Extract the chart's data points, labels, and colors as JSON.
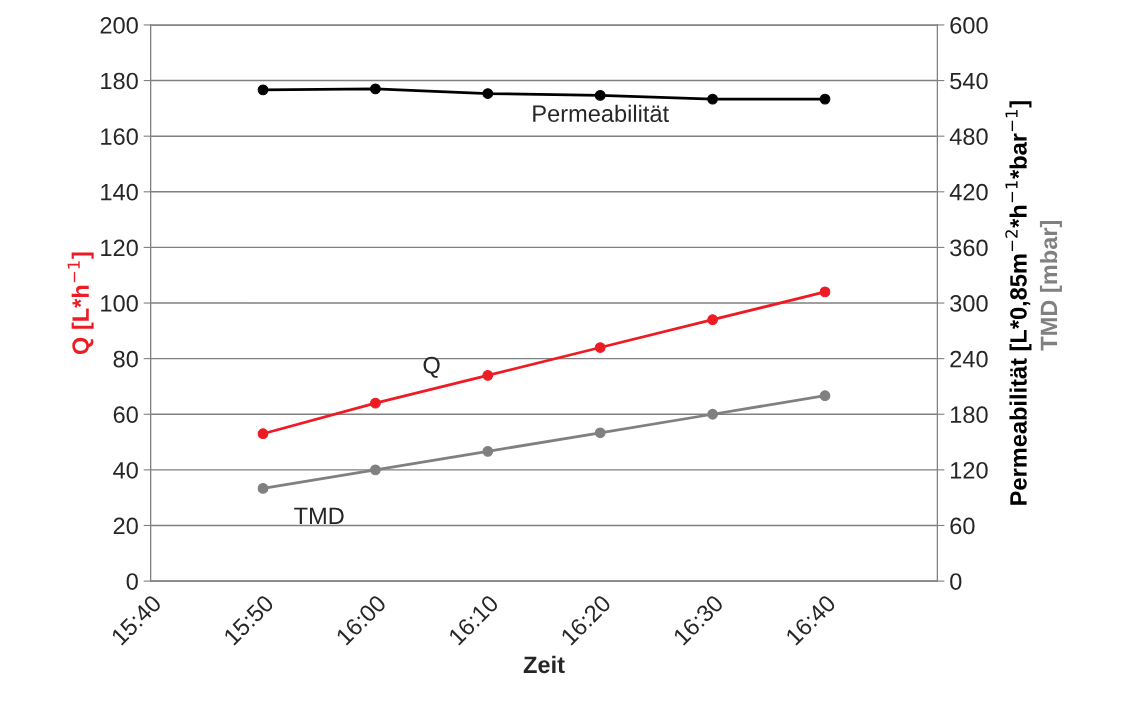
{
  "chart_data": {
    "type": "line",
    "xlabel": "Zeit",
    "ylabel": "Q [L*h$^{−1}$]",
    "y2label": "Permeabilität [L*0,85m$^{−2}$*h$^{−1}$*bar$^{−1}$]",
    "annotations": [
      "TMD [mbar]"
    ],
    "x": [
      15.833333,
      16.0,
      16.166667,
      16.333333,
      16.5,
      16.666667
    ],
    "series": [
      {
        "name": "Q",
        "color": "#ed1c24",
        "values": [
          53,
          64,
          74,
          84,
          94,
          104
        ]
      },
      {
        "name": "TMD",
        "color": "#808080",
        "axis": "y2",
        "values": [
          100,
          120,
          140,
          160,
          180,
          200
        ]
      },
      {
        "name": "Permeabilität",
        "color": "#000000",
        "axis": "y2",
        "values": [
          530,
          531,
          526,
          524,
          520,
          520
        ]
      }
    ],
    "xlim": [
      15.666667,
      16.833333
    ],
    "xticks": [
      {
        "value": 15.666667,
        "label": "15:40"
      },
      {
        "value": 15.833333,
        "label": "15:50"
      },
      {
        "value": 16.0,
        "label": "16:00"
      },
      {
        "value": 16.166667,
        "label": "16:10"
      },
      {
        "value": 16.333333,
        "label": "16:20"
      },
      {
        "value": 16.5,
        "label": "16:30"
      },
      {
        "value": 16.666667,
        "label": "16:40"
      }
    ],
    "ylim": [
      0,
      200
    ],
    "yticks": [
      0,
      20,
      40,
      60,
      80,
      100,
      120,
      140,
      160,
      180,
      200
    ],
    "y2lim": [
      0,
      600
    ],
    "y2ticks": [
      0,
      60,
      120,
      180,
      240,
      300,
      360,
      420,
      480,
      540,
      600
    ],
    "grid": "y",
    "legend": false,
    "marker": "circle",
    "line_style": "solid"
  }
}
